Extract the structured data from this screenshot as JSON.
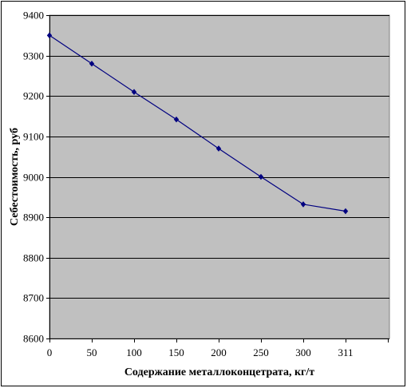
{
  "chart_data": {
    "type": "line",
    "xlabel": "Содержание металлоконцетрата, кг/т",
    "ylabel": "Себестоимость, руб",
    "categories": [
      "0",
      "50",
      "100",
      "150",
      "200",
      "250",
      "300",
      "311"
    ],
    "y_ticks": [
      "8600",
      "8700",
      "8800",
      "8900",
      "9000",
      "9100",
      "9200",
      "9300",
      "9400"
    ],
    "ylim": [
      8600,
      9400
    ],
    "grid": true,
    "legend": "none",
    "series": [
      {
        "values": [
          9350,
          9280,
          9210,
          9142,
          9070,
          9000,
          8932,
          8915
        ]
      }
    ],
    "colors": {
      "plot_bg": "#c0c0c0",
      "line": "#000080",
      "grid": "#000000"
    }
  }
}
